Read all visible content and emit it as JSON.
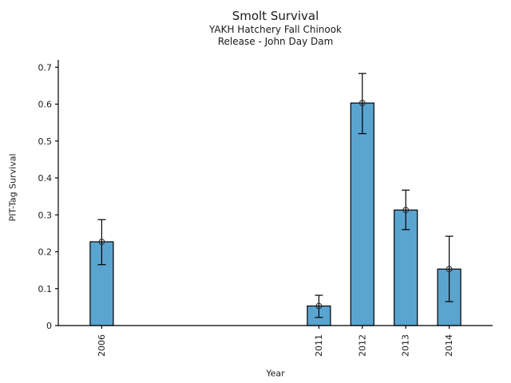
{
  "figure": {
    "title": "Smolt Survival",
    "subtitle_line1": "YAKH Hatchery Fall Chinook",
    "subtitle_line2": "Release - John Day Dam"
  },
  "chart_data": {
    "type": "bar",
    "title": "Smolt Survival",
    "subtitle": [
      "YAKH Hatchery Fall Chinook",
      "Release - John Day Dam"
    ],
    "xlabel": "Year",
    "ylabel": "PIT-Tag Survival",
    "x": [
      2006,
      2011,
      2012,
      2013,
      2014
    ],
    "xtick_labels": [
      "2006",
      "2011",
      "2012",
      "2013",
      "2014"
    ],
    "values": [
      0.227,
      0.053,
      0.603,
      0.313,
      0.153
    ],
    "error_low": [
      0.165,
      0.022,
      0.52,
      0.26,
      0.065
    ],
    "error_high": [
      0.287,
      0.082,
      0.683,
      0.367,
      0.242
    ],
    "xlim": [
      2005,
      2015
    ],
    "ylim": [
      0,
      0.72
    ],
    "yticks": [
      0,
      0.1,
      0.2,
      0.3,
      0.4,
      0.5,
      0.6,
      0.7
    ],
    "ytick_labels": [
      "0",
      "0.1",
      "0.2",
      "0.3",
      "0.4",
      "0.5",
      "0.6",
      "0.7"
    ],
    "grid": false,
    "legend": null,
    "marker": "open-circle",
    "bar_color": "#5AA4D0",
    "bar_edge_color": "#000000",
    "error_bar_color": "#000000",
    "xtick_rotation_deg": -90
  }
}
